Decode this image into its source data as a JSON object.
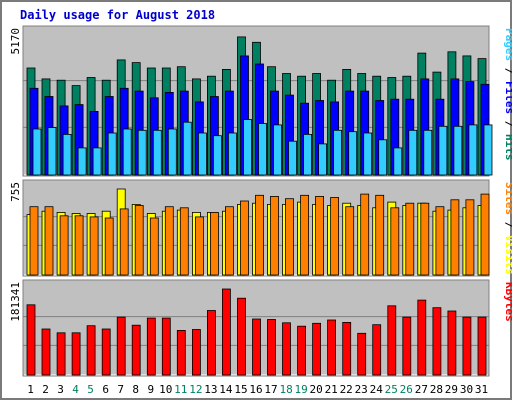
{
  "chart_data": {
    "type": "bar",
    "title": "Daily usage for August 2018",
    "days": [
      "1",
      "2",
      "3",
      "4",
      "5",
      "6",
      "7",
      "8",
      "9",
      "10",
      "11",
      "12",
      "13",
      "14",
      "15",
      "16",
      "17",
      "18",
      "19",
      "20",
      "21",
      "22",
      "23",
      "24",
      "25",
      "26",
      "27",
      "28",
      "29",
      "30",
      "31"
    ],
    "weekend_days": [
      "4",
      "5",
      "11",
      "12",
      "18",
      "19",
      "25",
      "26"
    ],
    "panels": [
      {
        "id": "hits",
        "max_label": "5170",
        "ymax": 5170,
        "legend": [
          {
            "text": "Pages",
            "color": "#33ccff"
          },
          {
            "text": " / ",
            "color": "#000000"
          },
          {
            "text": "Files",
            "color": "#0000ff"
          },
          {
            "text": " / ",
            "color": "#000000"
          },
          {
            "text": "Hits",
            "color": "#008060"
          }
        ],
        "series": [
          {
            "name": "Hits",
            "color": "#008060",
            "values": [
              3950,
              3550,
              3500,
              3300,
              3600,
              3500,
              4250,
              4150,
              3950,
              3950,
              4000,
              3550,
              3650,
              3900,
              5100,
              4900,
              4000,
              3750,
              3650,
              3750,
              3500,
              3900,
              3750,
              3650,
              3600,
              3650,
              4500,
              3800,
              4550,
              4400,
              4300
            ]
          },
          {
            "name": "Files",
            "color": "#0000ff",
            "values": [
              3200,
              2900,
              2550,
              2600,
              2350,
              2900,
              3200,
              3100,
              2850,
              3050,
              3100,
              2700,
              2900,
              3100,
              4400,
              4100,
              3100,
              2950,
              2650,
              2750,
              2700,
              3100,
              3100,
              2750,
              2800,
              2800,
              3550,
              2800,
              3550,
              3450,
              3350
            ]
          },
          {
            "name": "Pages",
            "color": "#33ccff",
            "values": [
              1700,
              1750,
              1500,
              1000,
              1000,
              1550,
              1700,
              1650,
              1650,
              1700,
              1950,
              1550,
              1450,
              1550,
              2050,
              1900,
              1850,
              1250,
              1500,
              1150,
              1650,
              1600,
              1550,
              1300,
              1000,
              1650,
              1650,
              1800,
              1800,
              1850,
              1850
            ]
          }
        ]
      },
      {
        "id": "visits",
        "max_label": "755",
        "ymax": 755,
        "legend": [
          {
            "text": "Sites",
            "color": "#ff8000"
          },
          {
            "text": " / ",
            "color": "#000000"
          },
          {
            "text": "Visits",
            "color": "#ffff00"
          }
        ],
        "series": [
          {
            "name": "Visits",
            "color": "#ffff00",
            "values": [
              530,
              560,
              550,
              540,
              540,
              560,
              755,
              620,
              540,
              560,
              570,
              550,
              550,
              560,
              620,
              630,
              620,
              620,
              640,
              620,
              610,
              630,
              610,
              590,
              640,
              610,
              630,
              560,
              570,
              590,
              610
            ]
          },
          {
            "name": "Sites",
            "color": "#ff8000",
            "values": [
              600,
              600,
              520,
              520,
              510,
              500,
              580,
              610,
              500,
              600,
              590,
              510,
              550,
              600,
              650,
              700,
              690,
              670,
              700,
              690,
              680,
              600,
              710,
              700,
              590,
              630,
              630,
              600,
              660,
              660,
              710
            ]
          }
        ]
      },
      {
        "id": "kbytes",
        "max_label": "181341",
        "ymax": 181341,
        "legend": [
          {
            "text": "KBytes",
            "color": "#ff0000"
          }
        ],
        "series": [
          {
            "name": "KBytes",
            "color": "#ff0000",
            "values": [
              148000,
              97000,
              89000,
              89000,
              104000,
              97000,
              122000,
              105000,
              120000,
              120000,
              94000,
              96000,
              136000,
              181341,
              162000,
              118000,
              117000,
              110000,
              103000,
              109000,
              116000,
              111000,
              88000,
              106000,
              146000,
              122000,
              158000,
              142000,
              135000,
              122000,
              0
            ]
          }
        ]
      }
    ]
  }
}
